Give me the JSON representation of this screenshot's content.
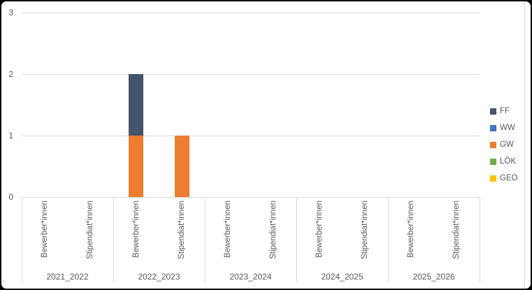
{
  "chart_data": {
    "type": "bar",
    "stacked": true,
    "title": "",
    "xlabel": "",
    "ylabel": "",
    "group_labels": [
      "2021_2022",
      "2022_2023",
      "2023_2024",
      "2024_2025",
      "2025_2026"
    ],
    "subcategories": [
      "Bewerber*innen",
      "Stipendiat*innen"
    ],
    "series": [
      {
        "name": "FF",
        "color": "#44546A",
        "values": [
          [
            0,
            0
          ],
          [
            1,
            0
          ],
          [
            0,
            0
          ],
          [
            0,
            0
          ],
          [
            0,
            0
          ]
        ]
      },
      {
        "name": "WW",
        "color": "#4472C4",
        "values": [
          [
            0,
            0
          ],
          [
            0,
            0
          ],
          [
            0,
            0
          ],
          [
            0,
            0
          ],
          [
            0,
            0
          ]
        ]
      },
      {
        "name": "GW",
        "color": "#ED7D31",
        "values": [
          [
            0,
            0
          ],
          [
            1,
            1
          ],
          [
            0,
            0
          ],
          [
            0,
            0
          ],
          [
            0,
            0
          ]
        ]
      },
      {
        "name": "LÖK",
        "color": "#70AD47",
        "values": [
          [
            0,
            0
          ],
          [
            0,
            0
          ],
          [
            0,
            0
          ],
          [
            0,
            0
          ],
          [
            0,
            0
          ]
        ]
      },
      {
        "name": "GEO",
        "color": "#FFC000",
        "values": [
          [
            0,
            0
          ],
          [
            0,
            0
          ],
          [
            0,
            0
          ],
          [
            0,
            0
          ],
          [
            0,
            0
          ]
        ]
      }
    ],
    "y_ticks": [
      0,
      1,
      2,
      3
    ],
    "ylim": [
      0,
      3
    ],
    "grid": true,
    "legend_position": "right",
    "colors": {
      "grid": "#D9D9D9",
      "axis": "#D9D9D9",
      "text": "#595959"
    }
  }
}
